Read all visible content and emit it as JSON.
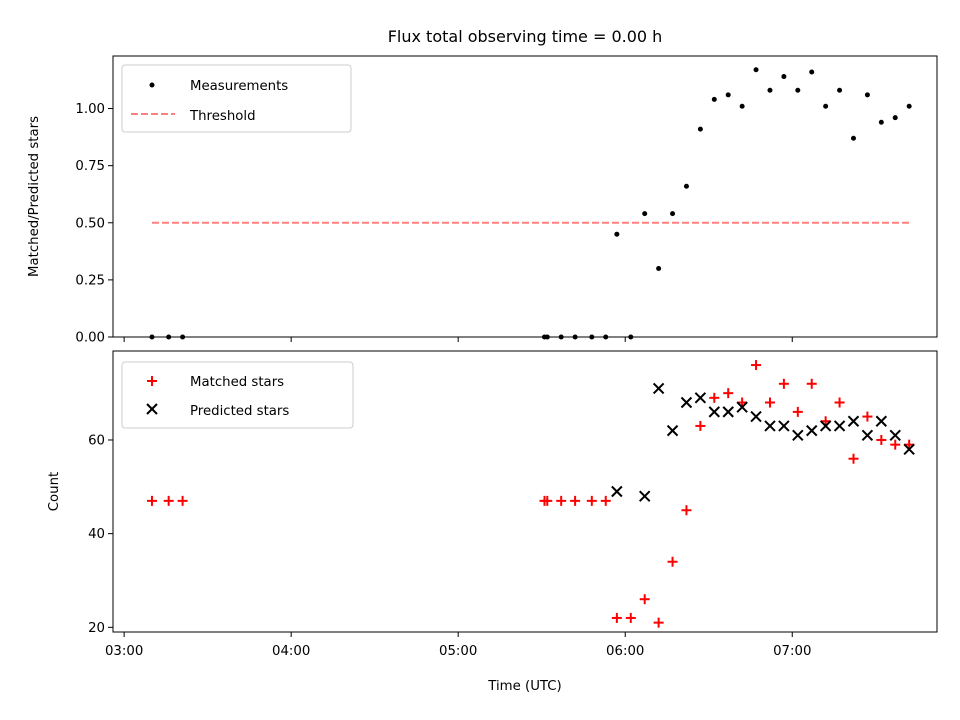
{
  "title": "Flux total observing time = 0.00 h",
  "xlabel": "Time (UTC)",
  "x_ticks": [
    "03:00",
    "04:00",
    "05:00",
    "06:00",
    "07:00"
  ],
  "colors": {
    "measurement": "#000000",
    "threshold": "#ff8080",
    "matched": "#ff0000",
    "predicted": "#000000"
  },
  "chart_data": [
    {
      "type": "scatter",
      "ylabel": "Matched/Predicted stars",
      "xlim": [
        "02:56",
        "07:52"
      ],
      "ylim": [
        0,
        1.23
      ],
      "y_ticks": [
        "0.00",
        "0.25",
        "0.50",
        "0.75",
        "1.00"
      ],
      "legend_position": "top-left",
      "series": [
        {
          "name": "Measurements",
          "marker": "dot",
          "points": [
            [
              "03:10",
              0.0
            ],
            [
              "03:16",
              0.0
            ],
            [
              "03:21",
              0.0
            ],
            [
              "05:31",
              0.0
            ],
            [
              "05:32",
              0.0
            ],
            [
              "05:37",
              0.0
            ],
            [
              "05:42",
              0.0
            ],
            [
              "05:48",
              0.0
            ],
            [
              "05:53",
              0.0
            ],
            [
              "06:02",
              0.0
            ],
            [
              "05:57",
              0.45
            ],
            [
              "06:07",
              0.54
            ],
            [
              "06:12",
              0.3
            ],
            [
              "06:17",
              0.54
            ],
            [
              "06:22",
              0.66
            ],
            [
              "06:27",
              0.91
            ],
            [
              "06:32",
              1.04
            ],
            [
              "06:37",
              1.06
            ],
            [
              "06:42",
              1.01
            ],
            [
              "06:47",
              1.17
            ],
            [
              "06:52",
              1.08
            ],
            [
              "06:57",
              1.14
            ],
            [
              "07:02",
              1.08
            ],
            [
              "07:07",
              1.16
            ],
            [
              "07:12",
              1.01
            ],
            [
              "07:17",
              1.08
            ],
            [
              "07:22",
              0.87
            ],
            [
              "07:27",
              1.06
            ],
            [
              "07:32",
              0.94
            ],
            [
              "07:37",
              0.96
            ],
            [
              "07:42",
              1.01
            ]
          ]
        },
        {
          "name": "Threshold",
          "style": "dashed",
          "points": [
            [
              "03:10",
              0.5
            ],
            [
              "07:42",
              0.5
            ]
          ]
        }
      ]
    },
    {
      "type": "scatter",
      "ylabel": "Count",
      "xlim": [
        "02:56",
        "07:52"
      ],
      "ylim": [
        19,
        79
      ],
      "y_ticks": [
        "20",
        "40",
        "60"
      ],
      "legend_position": "top-left",
      "series": [
        {
          "name": "Matched stars",
          "marker": "plus",
          "points": [
            [
              "03:10",
              47
            ],
            [
              "03:16",
              47
            ],
            [
              "03:21",
              47
            ],
            [
              "05:31",
              47
            ],
            [
              "05:32",
              47
            ],
            [
              "05:37",
              47
            ],
            [
              "05:42",
              47
            ],
            [
              "05:48",
              47
            ],
            [
              "05:53",
              47
            ],
            [
              "05:57",
              22
            ],
            [
              "06:02",
              22
            ],
            [
              "06:07",
              26
            ],
            [
              "06:12",
              21
            ],
            [
              "06:17",
              34
            ],
            [
              "06:22",
              45
            ],
            [
              "06:27",
              63
            ],
            [
              "06:32",
              69
            ],
            [
              "06:37",
              70
            ],
            [
              "06:42",
              68
            ],
            [
              "06:47",
              76
            ],
            [
              "06:52",
              68
            ],
            [
              "06:57",
              72
            ],
            [
              "07:02",
              66
            ],
            [
              "07:07",
              72
            ],
            [
              "07:12",
              64
            ],
            [
              "07:17",
              68
            ],
            [
              "07:22",
              56
            ],
            [
              "07:27",
              65
            ],
            [
              "07:32",
              60
            ],
            [
              "07:37",
              59
            ],
            [
              "07:42",
              59
            ]
          ]
        },
        {
          "name": "Predicted stars",
          "marker": "x",
          "points": [
            [
              "05:57",
              49
            ],
            [
              "06:07",
              48
            ],
            [
              "06:12",
              71
            ],
            [
              "06:17",
              62
            ],
            [
              "06:22",
              68
            ],
            [
              "06:27",
              69
            ],
            [
              "06:32",
              66
            ],
            [
              "06:37",
              66
            ],
            [
              "06:42",
              67
            ],
            [
              "06:47",
              65
            ],
            [
              "06:52",
              63
            ],
            [
              "06:57",
              63
            ],
            [
              "07:02",
              61
            ],
            [
              "07:07",
              62
            ],
            [
              "07:12",
              63
            ],
            [
              "07:17",
              63
            ],
            [
              "07:22",
              64
            ],
            [
              "07:27",
              61
            ],
            [
              "07:32",
              64
            ],
            [
              "07:37",
              61
            ],
            [
              "07:42",
              58
            ]
          ]
        }
      ]
    }
  ]
}
